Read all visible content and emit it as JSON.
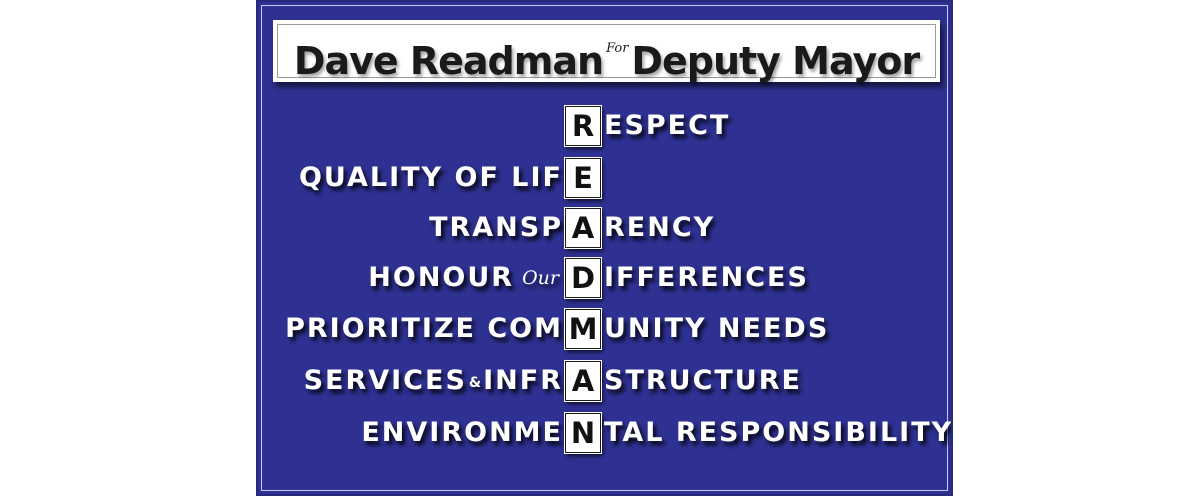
{
  "title": {
    "name_text": "Dave Readman",
    "connector": "For",
    "office_text": "Deputy Mayor"
  },
  "rows": [
    {
      "left": "",
      "connector": "",
      "tile": "R",
      "right": "ESPECT"
    },
    {
      "left": "QUALITY OF LIF",
      "connector": "",
      "tile": "E",
      "right": ""
    },
    {
      "left": "TRANSP",
      "connector": "",
      "tile": "A",
      "right": "RENCY"
    },
    {
      "left": "HONOUR",
      "connector": "Our",
      "tile": "D",
      "right": "IFFERENCES"
    },
    {
      "left": "PRIORITIZE COM",
      "connector": "",
      "tile": "M",
      "right": "UNITY NEEDS"
    },
    {
      "left": "SERVICES",
      "connector": "&",
      "left_after": "INFR",
      "tile": "A",
      "right": "STRUCTURE"
    },
    {
      "left": "ENVIRONME",
      "connector": "",
      "tile": "N",
      "right": "TAL RESPONSIBILITY"
    }
  ],
  "colors": {
    "background": "#2e3192",
    "text": "#ffffff",
    "tile": "#ffffff",
    "tile_text": "#111111",
    "banner": "#ffffff",
    "banner_text": "#1a1a1a"
  }
}
